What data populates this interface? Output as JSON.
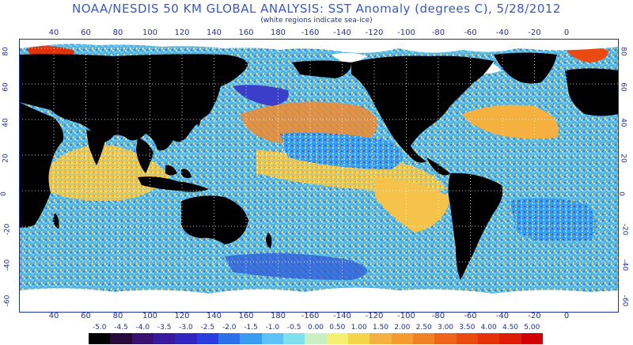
{
  "title": "NOAA/NESDIS 50 KM GLOBAL ANALYSIS: SST Anomaly (degrees C), 5/28/2012",
  "subtitle": "(white regions indicate sea-ice)",
  "lon_labels": [
    "40",
    "60",
    "80",
    "100",
    "120",
    "140",
    "160",
    "180",
    "-160",
    "-140",
    "-120",
    "-100",
    "-80",
    "-60",
    "-40",
    "-20",
    "0"
  ],
  "lat_labels": [
    "80",
    "60",
    "40",
    "20",
    "0",
    "-20",
    "-40",
    "-60"
  ],
  "legend": {
    "labels": [
      "-5.0",
      "-4.5",
      "-4.0",
      "-3.5",
      "-3.0",
      "-2.5",
      "-2.0",
      "-1.5",
      "-1.0",
      "-0.5",
      "0.00",
      "0.50",
      "1.00",
      "1.50",
      "2.00",
      "2.50",
      "3.00",
      "3.50",
      "4.00",
      "4.50",
      "5.00"
    ],
    "colors": [
      "#000000",
      "#2a0a3a",
      "#3a1070",
      "#3a1a9c",
      "#3225c0",
      "#2a3ee0",
      "#2d6fe8",
      "#3a9cf0",
      "#5ec2f5",
      "#7fe0f0",
      "#c8f0c0",
      "#f5f070",
      "#f5d44a",
      "#f5b040",
      "#f59a30",
      "#f28024",
      "#ee6418",
      "#ea4a10",
      "#e43208",
      "#dc1c04",
      "#d00000"
    ]
  },
  "map_colors": {
    "land": "#000000",
    "ice": "#ffffff",
    "ocean_base": "#4fb4f2",
    "warm": "#f5c24a",
    "hot": "#f08a30",
    "cool": "#2f7be8",
    "near_zero": "#bfe9d0",
    "grid": "#ffffff"
  }
}
